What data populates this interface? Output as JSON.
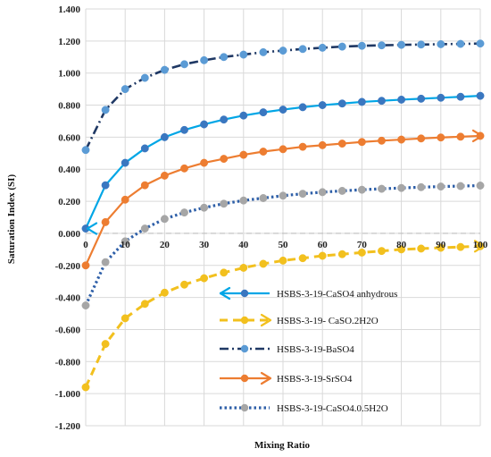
{
  "chart_data": {
    "type": "line",
    "title": "",
    "xlabel": "Mixing Ratio",
    "ylabel": "Saturation Index (SI)",
    "xlim": [
      0,
      100
    ],
    "ylim": [
      -1.2,
      1.4
    ],
    "x_ticks": [
      "0",
      "10",
      "20",
      "30",
      "40",
      "50",
      "60",
      "70",
      "80",
      "90",
      "100"
    ],
    "y_ticks": [
      "-1.200",
      "-1.000",
      "-0.800",
      "-0.600",
      "-0.400",
      "-0.200",
      "0.000",
      "0.200",
      "0.400",
      "0.600",
      "0.800",
      "1.000",
      "1.200",
      "1.400"
    ],
    "grid": "both",
    "legend_position": "inside-bottom-center",
    "x": [
      0,
      5,
      10,
      15,
      20,
      25,
      30,
      35,
      40,
      45,
      50,
      55,
      60,
      65,
      70,
      75,
      80,
      85,
      90,
      95,
      100
    ],
    "series": [
      {
        "name": "HSBS-3-19-CaSO4 anhydrous",
        "color": "#00a6e6",
        "marker_color": "#3a77c0",
        "dash": "solid",
        "values": [
          0.03,
          0.3,
          0.44,
          0.53,
          0.6,
          0.645,
          0.68,
          0.71,
          0.735,
          0.755,
          0.772,
          0.787,
          0.8,
          0.81,
          0.82,
          0.827,
          0.834,
          0.84,
          0.846,
          0.852,
          0.858
        ]
      },
      {
        "name": "HSBS-3-19- CaSO.2H2O",
        "color": "#f2c01e",
        "marker_color": "#f2c01e",
        "dash": "dash",
        "values": [
          -0.96,
          -0.69,
          -0.53,
          -0.44,
          -0.37,
          -0.32,
          -0.28,
          -0.245,
          -0.215,
          -0.19,
          -0.17,
          -0.155,
          -0.14,
          -0.13,
          -0.12,
          -0.11,
          -0.1,
          -0.095,
          -0.09,
          -0.085,
          -0.08
        ]
      },
      {
        "name": "HSBS-3-19-BaSO4",
        "color": "#1f3864",
        "marker_color": "#5b9bd5",
        "dash": "dashdot",
        "values": [
          0.52,
          0.77,
          0.9,
          0.97,
          1.02,
          1.055,
          1.08,
          1.1,
          1.115,
          1.13,
          1.14,
          1.15,
          1.158,
          1.165,
          1.17,
          1.173,
          1.176,
          1.178,
          1.18,
          1.182,
          1.184
        ]
      },
      {
        "name": "HSBS-3-19-SrSO4",
        "color": "#ed7d31",
        "marker_color": "#ed7d31",
        "dash": "solid",
        "values": [
          -0.2,
          0.07,
          0.21,
          0.3,
          0.36,
          0.405,
          0.44,
          0.465,
          0.49,
          0.51,
          0.525,
          0.54,
          0.55,
          0.56,
          0.57,
          0.578,
          0.585,
          0.592,
          0.598,
          0.603,
          0.608
        ]
      },
      {
        "name": "HSBS-3-19-CaSO4.0.5H2O",
        "color": "#2e5fa8",
        "marker_color": "#a6a6a6",
        "dash": "dot",
        "values": [
          -0.45,
          -0.18,
          -0.05,
          0.03,
          0.09,
          0.13,
          0.16,
          0.185,
          0.205,
          0.22,
          0.235,
          0.247,
          0.257,
          0.265,
          0.272,
          0.278,
          0.283,
          0.288,
          0.292,
          0.295,
          0.298
        ]
      }
    ]
  }
}
